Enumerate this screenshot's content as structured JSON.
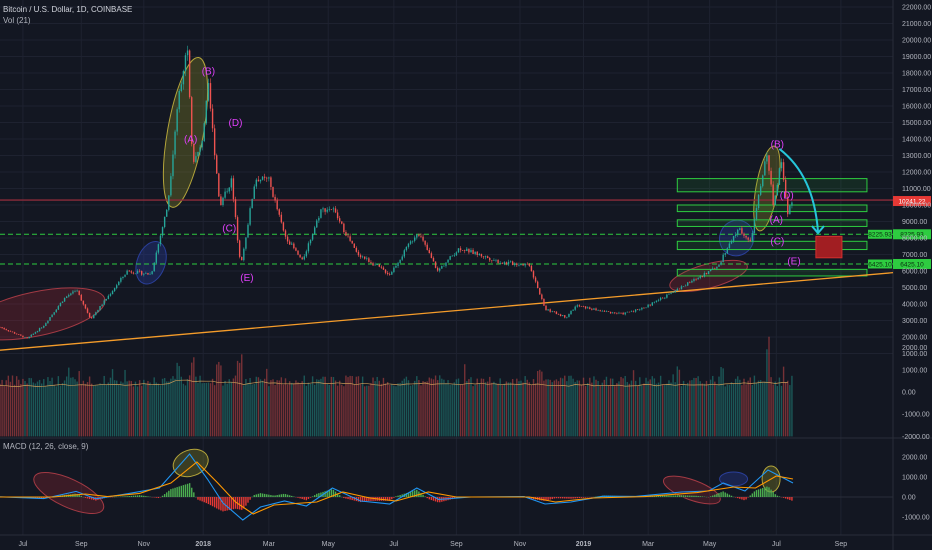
{
  "header": {
    "title": "Bitcoin / U.S. Dollar, 1D, COINBASE",
    "volume_label": "Vol (21)",
    "macd_label": "MACD (12, 26, close, 9)"
  },
  "chart_data": [
    {
      "type": "candlestick",
      "series": [
        {
          "name": "Bitcoin / U.S. Dollar, 1D, COINBASE"
        }
      ],
      "x_ticks": [
        "Jul",
        "Sep",
        "Nov",
        "2018",
        "Mar",
        "May",
        "Jul",
        "Sep",
        "Nov",
        "2019",
        "Mar",
        "May",
        "Jul",
        "Sep"
      ],
      "y_ticks": [
        22000,
        21000,
        20000,
        19000,
        18000,
        17000,
        16000,
        15000,
        14000,
        13000,
        12000,
        11000,
        10000,
        9000,
        8000,
        7000,
        6000,
        5000,
        4000,
        3000,
        2000,
        1000
      ],
      "last_price_label": "10241.22",
      "level_labels": [
        "8225.93",
        "6425.10"
      ],
      "price_path": [
        [
          "2017-06-20",
          2600
        ],
        [
          "2017-07-16",
          1900
        ],
        [
          "2017-08-01",
          2700
        ],
        [
          "2017-08-20",
          4300
        ],
        [
          "2017-09-01",
          4900
        ],
        [
          "2017-09-15",
          3100
        ],
        [
          "2017-10-01",
          4400
        ],
        [
          "2017-10-20",
          6000
        ],
        [
          "2017-11-12",
          5800
        ],
        [
          "2017-11-28",
          10000
        ],
        [
          "2017-12-08",
          16500
        ],
        [
          "2017-12-17",
          19700
        ],
        [
          "2017-12-22",
          12500
        ],
        [
          "2017-12-30",
          13500
        ],
        [
          "2018-01-06",
          17100
        ],
        [
          "2018-01-17",
          10000
        ],
        [
          "2018-01-28",
          11500
        ],
        [
          "2018-02-06",
          6200
        ],
        [
          "2018-02-20",
          11600
        ],
        [
          "2018-03-05",
          11500
        ],
        [
          "2018-03-20",
          8200
        ],
        [
          "2018-04-06",
          6600
        ],
        [
          "2018-04-24",
          9700
        ],
        [
          "2018-05-05",
          9800
        ],
        [
          "2018-05-28",
          7100
        ],
        [
          "2018-06-29",
          5800
        ],
        [
          "2018-07-26",
          8400
        ],
        [
          "2018-08-14",
          6000
        ],
        [
          "2018-09-04",
          7400
        ],
        [
          "2018-10-15",
          6500
        ],
        [
          "2018-11-10",
          6400
        ],
        [
          "2018-11-25",
          3700
        ],
        [
          "2018-12-15",
          3200
        ],
        [
          "2018-12-25",
          3900
        ],
        [
          "2019-01-20",
          3550
        ],
        [
          "2019-02-07",
          3400
        ],
        [
          "2019-03-01",
          3800
        ],
        [
          "2019-04-02",
          4900
        ],
        [
          "2019-05-10",
          6300
        ],
        [
          "2019-05-30",
          8600
        ],
        [
          "2019-06-10",
          7700
        ],
        [
          "2019-06-26",
          13200
        ],
        [
          "2019-07-02",
          10000
        ],
        [
          "2019-07-10",
          12700
        ],
        [
          "2019-07-16",
          9600
        ],
        [
          "2019-07-21",
          10241
        ]
      ],
      "wave_labels": [
        {
          "text": "(A)",
          "x": "2017-12-20",
          "y": 13800
        },
        {
          "text": "(B)",
          "x": "2018-01-06",
          "y": 17900
        },
        {
          "text": "(C)",
          "x": "2018-01-26",
          "y": 8400
        },
        {
          "text": "(D)",
          "x": "2018-02-01",
          "y": 14800
        },
        {
          "text": "(E)",
          "x": "2018-02-12",
          "y": 5400
        },
        {
          "text": "(A)",
          "x": "2019-07-05",
          "y": 8900
        },
        {
          "text": "(B)",
          "x": "2019-07-06",
          "y": 13500
        },
        {
          "text": "(C)",
          "x": "2019-07-06",
          "y": 7600
        },
        {
          "text": "(D)",
          "x": "2019-07-15",
          "y": 10400
        },
        {
          "text": "(E)",
          "x": "2019-07-22",
          "y": 6400
        }
      ],
      "zones": [
        {
          "x0": "2019-04-01",
          "x1": "2019-09-30",
          "y0": 10800,
          "y1": 11600
        },
        {
          "x0": "2019-04-01",
          "x1": "2019-09-30",
          "y0": 9600,
          "y1": 10000
        },
        {
          "x0": "2019-04-01",
          "x1": "2019-09-30",
          "y0": 8700,
          "y1": 9100
        },
        {
          "x0": "2019-04-01",
          "x1": "2019-09-30",
          "y0": 7300,
          "y1": 7800
        },
        {
          "x0": "2019-04-01",
          "x1": "2019-09-30",
          "y0": 5700,
          "y1": 6100
        }
      ],
      "target_box": {
        "x0": "2019-08-12",
        "x1": "2019-09-06",
        "y0": 6800,
        "y1": 8100
      },
      "trendlines": [
        {
          "from": [
            "2017-06-20",
            1200
          ],
          "to": [
            "2019-10-25",
            5900
          ],
          "color": "#f59c2a"
        },
        {
          "from": [
            "2017-06-20",
            10300
          ],
          "to": [
            "2019-10-25",
            10300
          ],
          "color": "#8a2b3a"
        }
      ],
      "dashed_levels": [
        8225.93,
        6425.1
      ]
    },
    {
      "type": "bar",
      "series": [
        {
          "name": "Vol (21)"
        }
      ],
      "y_ticks": [
        2000,
        1000,
        0,
        -1000,
        -2000
      ],
      "y_tick_labels": [
        "2000.00",
        "1000.00",
        "0.00",
        "-1000.00",
        "-2000.00"
      ]
    },
    {
      "type": "line",
      "series": [
        {
          "name": "MACD (12, 26, close, 9)"
        }
      ],
      "y_ticks": [
        2000,
        1000,
        0,
        -1000
      ],
      "y_tick_labels": [
        "2000.00",
        "1000.00",
        "0.00",
        "-1000.00"
      ],
      "macd_points": [
        [
          "2017-06-20",
          10
        ],
        [
          "2017-08-01",
          -80
        ],
        [
          "2017-09-01",
          280
        ],
        [
          "2017-09-20",
          -90
        ],
        [
          "2017-10-20",
          160
        ],
        [
          "2017-11-20",
          450
        ],
        [
          "2017-12-19",
          2150
        ],
        [
          "2018-01-05",
          900
        ],
        [
          "2018-01-20",
          -300
        ],
        [
          "2018-02-08",
          -1150
        ],
        [
          "2018-02-25",
          -500
        ],
        [
          "2018-03-20",
          -200
        ],
        [
          "2018-04-10",
          -450
        ],
        [
          "2018-05-05",
          450
        ],
        [
          "2018-06-01",
          -200
        ],
        [
          "2018-06-29",
          -350
        ],
        [
          "2018-07-25",
          450
        ],
        [
          "2018-08-15",
          -120
        ],
        [
          "2018-09-15",
          0
        ],
        [
          "2018-11-05",
          20
        ],
        [
          "2018-11-25",
          -350
        ],
        [
          "2018-12-20",
          -250
        ],
        [
          "2019-01-20",
          40
        ],
        [
          "2019-02-20",
          30
        ],
        [
          "2019-04-05",
          250
        ],
        [
          "2019-05-01",
          300
        ],
        [
          "2019-05-15",
          700
        ],
        [
          "2019-06-05",
          300
        ],
        [
          "2019-06-27",
          1350
        ],
        [
          "2019-07-21",
          700
        ]
      ],
      "signal_points": [
        [
          "2017-06-20",
          0
        ],
        [
          "2017-08-10",
          0
        ],
        [
          "2017-09-10",
          150
        ],
        [
          "2017-10-01",
          20
        ],
        [
          "2017-11-01",
          180
        ],
        [
          "2017-12-01",
          700
        ],
        [
          "2017-12-26",
          1750
        ],
        [
          "2018-01-15",
          700
        ],
        [
          "2018-02-01",
          -250
        ],
        [
          "2018-02-18",
          -850
        ],
        [
          "2018-03-10",
          -400
        ],
        [
          "2018-04-20",
          -250
        ],
        [
          "2018-05-15",
          250
        ],
        [
          "2018-06-10",
          -50
        ],
        [
          "2018-07-05",
          -200
        ],
        [
          "2018-08-05",
          250
        ],
        [
          "2018-09-01",
          0
        ],
        [
          "2018-11-10",
          0
        ],
        [
          "2018-12-05",
          -250
        ],
        [
          "2019-01-10",
          -50
        ],
        [
          "2019-03-01",
          20
        ],
        [
          "2019-04-20",
          220
        ],
        [
          "2019-05-25",
          500
        ],
        [
          "2019-06-15",
          450
        ],
        [
          "2019-07-05",
          1050
        ],
        [
          "2019-07-21",
          900
        ]
      ]
    }
  ]
}
